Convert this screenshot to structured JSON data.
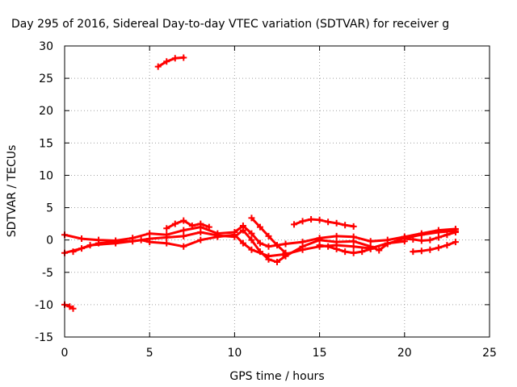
{
  "chart_data": {
    "type": "scatter",
    "title": "Day 295 of 2016, Sidereal Day-to-day VTEC variation (SDTVAR) for receiver g",
    "xlabel": "GPS time / hours",
    "ylabel": "SDTVAR / TECUs",
    "xlim": [
      0,
      25
    ],
    "ylim": [
      -15,
      30
    ],
    "xticks": [
      "0",
      "5",
      "10",
      "15",
      "20",
      "25"
    ],
    "yticks": [
      "-15",
      "-10",
      "-5",
      "0",
      "5",
      "10",
      "15",
      "20",
      "25",
      "30"
    ],
    "grid": true,
    "color": "#ff0000",
    "series": [
      {
        "x": [
          0.0,
          0.3,
          0.5
        ],
        "y": [
          -10.0,
          -10.3,
          -10.6
        ]
      },
      {
        "x": [
          5.5,
          6.0,
          6.5,
          7.0
        ],
        "y": [
          26.8,
          27.6,
          28.1,
          28.2
        ]
      },
      {
        "x": [
          0.0,
          1,
          2,
          3,
          4,
          5,
          6,
          7,
          8,
          9,
          10,
          10.5,
          11,
          11.5,
          12,
          12.5,
          13,
          14,
          15,
          16,
          17,
          18,
          18.5,
          19,
          20,
          21,
          22,
          23
        ],
        "y": [
          -2,
          -1.3,
          -0.5,
          -0.3,
          -0.2,
          0.2,
          0.4,
          0.6,
          1.2,
          0.7,
          0.5,
          1.5,
          0.0,
          -1.8,
          -3.0,
          -3.4,
          -2.5,
          -1.0,
          0.0,
          -0.3,
          -0.2,
          -1.0,
          -1.6,
          -0.6,
          0.3,
          0.8,
          1.2,
          1.4
        ]
      },
      {
        "x": [
          0.0,
          1,
          2,
          3,
          4,
          5,
          6,
          7,
          8,
          9,
          10,
          10.5,
          11,
          11.5,
          12,
          13,
          14,
          15,
          16,
          17,
          18,
          19,
          20,
          21,
          22,
          23
        ],
        "y": [
          0.8,
          0.2,
          0.0,
          -0.1,
          0.3,
          1.0,
          0.8,
          1.5,
          2.0,
          1.0,
          1.2,
          2.2,
          1.0,
          -0.5,
          -1.0,
          -0.6,
          -0.3,
          0.3,
          0.6,
          0.5,
          -0.2,
          0.0,
          0.5,
          1.0,
          1.5,
          1.7
        ]
      },
      {
        "x": [
          0.5,
          1.5,
          3,
          4.5,
          5,
          6,
          7,
          8,
          9,
          10,
          10.5,
          11,
          12,
          13,
          14,
          15,
          16,
          17,
          18,
          19,
          20
        ],
        "y": [
          -1.8,
          -0.8,
          -0.5,
          0.0,
          -0.3,
          -0.5,
          -1.0,
          0.0,
          0.5,
          0.8,
          -0.5,
          -1.5,
          -2.5,
          -2.2,
          -1.5,
          -1.0,
          -0.8,
          -1.0,
          -1.3,
          -0.5,
          -0.2
        ]
      },
      {
        "x": [
          6.0,
          6.5,
          7,
          7.5,
          8,
          8.5
        ],
        "y": [
          1.8,
          2.5,
          3.0,
          2.2,
          2.5,
          2.0
        ]
      },
      {
        "x": [
          11.0,
          11.5,
          12,
          12.5,
          13
        ],
        "y": [
          3.4,
          2.0,
          0.6,
          -0.8,
          -2.0
        ]
      },
      {
        "x": [
          13.5,
          14,
          14.5,
          15,
          15.5,
          16,
          16.5,
          17
        ],
        "y": [
          2.4,
          2.9,
          3.2,
          3.1,
          2.8,
          2.6,
          2.3,
          2.1
        ]
      },
      {
        "x": [
          15.0,
          15.5,
          16,
          16.5,
          17,
          17.5,
          18
        ],
        "y": [
          -0.8,
          -1.0,
          -1.4,
          -1.8,
          -2.0,
          -1.8,
          -1.4
        ]
      },
      {
        "x": [
          20.5,
          21,
          21.5,
          22,
          22.5,
          23
        ],
        "y": [
          -1.8,
          -1.7,
          -1.5,
          -1.2,
          -0.8,
          -0.3
        ]
      },
      {
        "x": [
          20.0,
          20.5,
          21,
          21.5,
          22,
          22.5,
          23
        ],
        "y": [
          0.2,
          0.1,
          -0.1,
          0.0,
          0.4,
          0.8,
          1.2
        ]
      }
    ]
  }
}
